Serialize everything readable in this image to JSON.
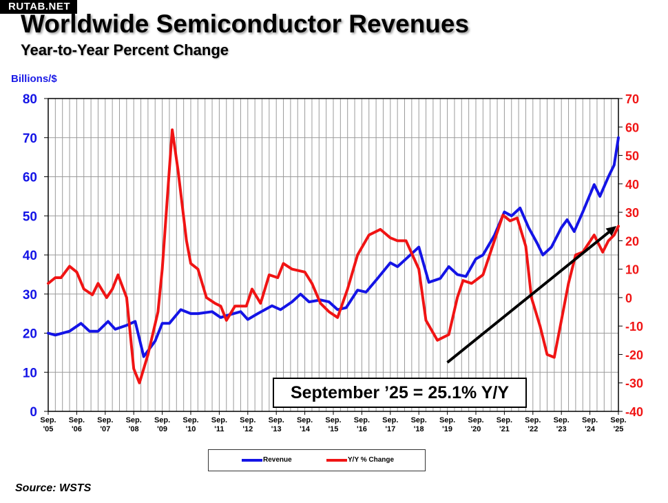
{
  "watermark": "RUTAB.NET",
  "title": "Worldwide Semiconductor Revenues",
  "subtitle": "Year-to-Year Percent Change",
  "source": "Source: WSTS",
  "chart_data": {
    "type": "line",
    "title": "Worldwide Semiconductor Revenues",
    "subtitle": "Year-to-Year Percent Change",
    "ylabel": "Billions/$",
    "ylim": [
      0,
      80
    ],
    "y2lim": [
      -40,
      70
    ],
    "yticks": [
      "0",
      "10",
      "20",
      "30",
      "40",
      "50",
      "60",
      "70",
      "80"
    ],
    "y2ticks": [
      "-40",
      "-30",
      "-20",
      "-10",
      "0",
      "10",
      "20",
      "30",
      "40",
      "50",
      "60",
      "70"
    ],
    "xlim": [
      2005.75,
      2025.75
    ],
    "xticks": [
      {
        "top": "Sep.",
        "bottom": "'05"
      },
      {
        "top": "Sep.",
        "bottom": "'06"
      },
      {
        "top": "Sep.",
        "bottom": "'07"
      },
      {
        "top": "Sep.",
        "bottom": "'08"
      },
      {
        "top": "Sep.",
        "bottom": "'09"
      },
      {
        "top": "Sep.",
        "bottom": "'10"
      },
      {
        "top": "Sep.",
        "bottom": "'11"
      },
      {
        "top": "Sep.",
        "bottom": "'12"
      },
      {
        "top": "Sep.",
        "bottom": "'13"
      },
      {
        "top": "Sep.",
        "bottom": "'14"
      },
      {
        "top": "Sep.",
        "bottom": "'15"
      },
      {
        "top": "Sep.",
        "bottom": "'16"
      },
      {
        "top": "Sep.",
        "bottom": "'17"
      },
      {
        "top": "Sep.",
        "bottom": "'18"
      },
      {
        "top": "Sep.",
        "bottom": "'19"
      },
      {
        "top": "Sep.",
        "bottom": "'20"
      },
      {
        "top": "Sep.",
        "bottom": "'21"
      },
      {
        "top": "Sep.",
        "bottom": "'22"
      },
      {
        "top": "Sep.",
        "bottom": "'23"
      },
      {
        "top": "Sep.",
        "bottom": "'24"
      },
      {
        "top": "Sep.",
        "bottom": "'25"
      }
    ],
    "grid": true,
    "legend_position": "bottom",
    "series": [
      {
        "name": "Revenue",
        "axis": "left",
        "color": "#1414e6",
        "points": [
          [
            2005.75,
            20
          ],
          [
            2006.0,
            19.5
          ],
          [
            2006.5,
            20.5
          ],
          [
            2006.9,
            22.5
          ],
          [
            2007.2,
            20.5
          ],
          [
            2007.5,
            20.5
          ],
          [
            2007.85,
            23
          ],
          [
            2008.1,
            21
          ],
          [
            2008.5,
            22
          ],
          [
            2008.8,
            23
          ],
          [
            2009.1,
            14
          ],
          [
            2009.5,
            18
          ],
          [
            2009.75,
            22.5
          ],
          [
            2010.0,
            22.5
          ],
          [
            2010.4,
            26
          ],
          [
            2010.75,
            25
          ],
          [
            2011.0,
            25
          ],
          [
            2011.5,
            25.5
          ],
          [
            2011.8,
            24
          ],
          [
            2012.0,
            24.5
          ],
          [
            2012.5,
            25.5
          ],
          [
            2012.75,
            23.5
          ],
          [
            2013.1,
            25
          ],
          [
            2013.6,
            27
          ],
          [
            2013.9,
            26
          ],
          [
            2014.3,
            28
          ],
          [
            2014.6,
            30
          ],
          [
            2014.9,
            28
          ],
          [
            2015.3,
            28.5
          ],
          [
            2015.6,
            28
          ],
          [
            2015.9,
            26
          ],
          [
            2016.2,
            26.5
          ],
          [
            2016.6,
            31
          ],
          [
            2016.9,
            30.5
          ],
          [
            2017.3,
            34
          ],
          [
            2017.75,
            38
          ],
          [
            2018.0,
            37
          ],
          [
            2018.3,
            39
          ],
          [
            2018.75,
            42
          ],
          [
            2019.1,
            33
          ],
          [
            2019.5,
            34
          ],
          [
            2019.8,
            37
          ],
          [
            2020.1,
            35
          ],
          [
            2020.4,
            34.5
          ],
          [
            2020.75,
            39
          ],
          [
            2021.0,
            40
          ],
          [
            2021.4,
            45
          ],
          [
            2021.75,
            51
          ],
          [
            2022.0,
            50
          ],
          [
            2022.3,
            52
          ],
          [
            2022.6,
            47
          ],
          [
            2022.9,
            43
          ],
          [
            2023.1,
            40
          ],
          [
            2023.4,
            42
          ],
          [
            2023.75,
            47
          ],
          [
            2023.95,
            49
          ],
          [
            2024.2,
            46
          ],
          [
            2024.5,
            51
          ],
          [
            2024.9,
            58
          ],
          [
            2025.1,
            55
          ],
          [
            2025.4,
            60
          ],
          [
            2025.6,
            63
          ],
          [
            2025.75,
            70
          ]
        ]
      },
      {
        "name": "Y/Y % Change",
        "axis": "right",
        "color": "#f01414",
        "points": [
          [
            2005.75,
            5
          ],
          [
            2006.0,
            7
          ],
          [
            2006.2,
            7
          ],
          [
            2006.5,
            11
          ],
          [
            2006.75,
            9
          ],
          [
            2007.0,
            3
          ],
          [
            2007.3,
            1
          ],
          [
            2007.5,
            5
          ],
          [
            2007.8,
            0
          ],
          [
            2008.0,
            3
          ],
          [
            2008.2,
            8
          ],
          [
            2008.5,
            0
          ],
          [
            2008.75,
            -25
          ],
          [
            2008.95,
            -30
          ],
          [
            2009.25,
            -20
          ],
          [
            2009.6,
            -5
          ],
          [
            2009.75,
            10
          ],
          [
            2010.0,
            45
          ],
          [
            2010.1,
            59
          ],
          [
            2010.3,
            45
          ],
          [
            2010.6,
            20
          ],
          [
            2010.75,
            12
          ],
          [
            2011.0,
            10
          ],
          [
            2011.3,
            0
          ],
          [
            2011.6,
            -2
          ],
          [
            2011.8,
            -3
          ],
          [
            2012.0,
            -8
          ],
          [
            2012.3,
            -3
          ],
          [
            2012.7,
            -3
          ],
          [
            2012.9,
            3
          ],
          [
            2013.2,
            -2
          ],
          [
            2013.5,
            8
          ],
          [
            2013.8,
            7
          ],
          [
            2014.0,
            12
          ],
          [
            2014.3,
            10
          ],
          [
            2014.75,
            9
          ],
          [
            2015.0,
            5
          ],
          [
            2015.3,
            -2
          ],
          [
            2015.6,
            -5
          ],
          [
            2015.9,
            -7
          ],
          [
            2016.25,
            3
          ],
          [
            2016.6,
            15
          ],
          [
            2017.0,
            22
          ],
          [
            2017.4,
            24
          ],
          [
            2017.75,
            21
          ],
          [
            2018.0,
            20
          ],
          [
            2018.3,
            20
          ],
          [
            2018.75,
            10
          ],
          [
            2019.0,
            -8
          ],
          [
            2019.4,
            -15
          ],
          [
            2019.8,
            -13
          ],
          [
            2020.1,
            0
          ],
          [
            2020.3,
            6
          ],
          [
            2020.6,
            5
          ],
          [
            2021.0,
            8
          ],
          [
            2021.4,
            20
          ],
          [
            2021.7,
            29
          ],
          [
            2021.95,
            27
          ],
          [
            2022.2,
            28
          ],
          [
            2022.5,
            18
          ],
          [
            2022.7,
            0
          ],
          [
            2023.0,
            -10
          ],
          [
            2023.25,
            -20
          ],
          [
            2023.5,
            -21
          ],
          [
            2023.75,
            -8
          ],
          [
            2024.0,
            5
          ],
          [
            2024.25,
            15
          ],
          [
            2024.5,
            16
          ],
          [
            2024.9,
            22
          ],
          [
            2025.2,
            16
          ],
          [
            2025.4,
            20
          ],
          [
            2025.6,
            22
          ],
          [
            2025.75,
            25.1
          ]
        ]
      }
    ],
    "annotations": [
      {
        "text": "September ’25 = 25.1% Y/Y"
      },
      {
        "type": "arrow",
        "from": [
          2019.75,
          12.5
        ],
        "to": [
          2025.68,
          47.4
        ],
        "axis": "left"
      }
    ]
  }
}
